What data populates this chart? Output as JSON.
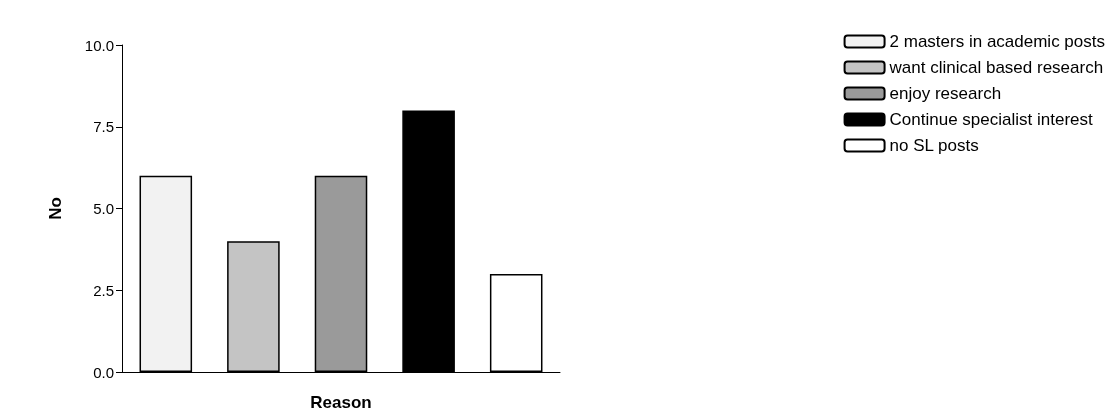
{
  "chart_data": {
    "type": "bar",
    "xlabel": "Reason",
    "ylabel": "No",
    "categories": [
      null,
      null,
      null,
      null,
      null
    ],
    "series": [
      {
        "name": "2 masters in academic posts",
        "color": "#f2f2f2",
        "values": [
          6,
          null,
          null,
          null,
          null
        ]
      },
      {
        "name": "want clinical based research",
        "color": "#c4c4c4",
        "values": [
          null,
          4,
          null,
          null,
          null
        ]
      },
      {
        "name": "enjoy research",
        "color": "#9a9a9a",
        "values": [
          null,
          null,
          6,
          null,
          null
        ]
      },
      {
        "name": "Continue specialist interest",
        "color": "#000000",
        "values": [
          null,
          null,
          null,
          8,
          null
        ]
      },
      {
        "name": "no SL posts",
        "color": "#ffffff",
        "values": [
          null,
          null,
          null,
          null,
          3
        ]
      }
    ],
    "ylim": [
      0,
      10
    ],
    "yticks": [
      {
        "value": 0,
        "label": "0.0"
      },
      {
        "value": 2.5,
        "label": "2.5"
      },
      {
        "value": 5,
        "label": "5.0"
      },
      {
        "value": 7.5,
        "label": "7.5"
      },
      {
        "value": 10,
        "label": "10.0"
      }
    ],
    "grid": false,
    "legend": "top right"
  }
}
